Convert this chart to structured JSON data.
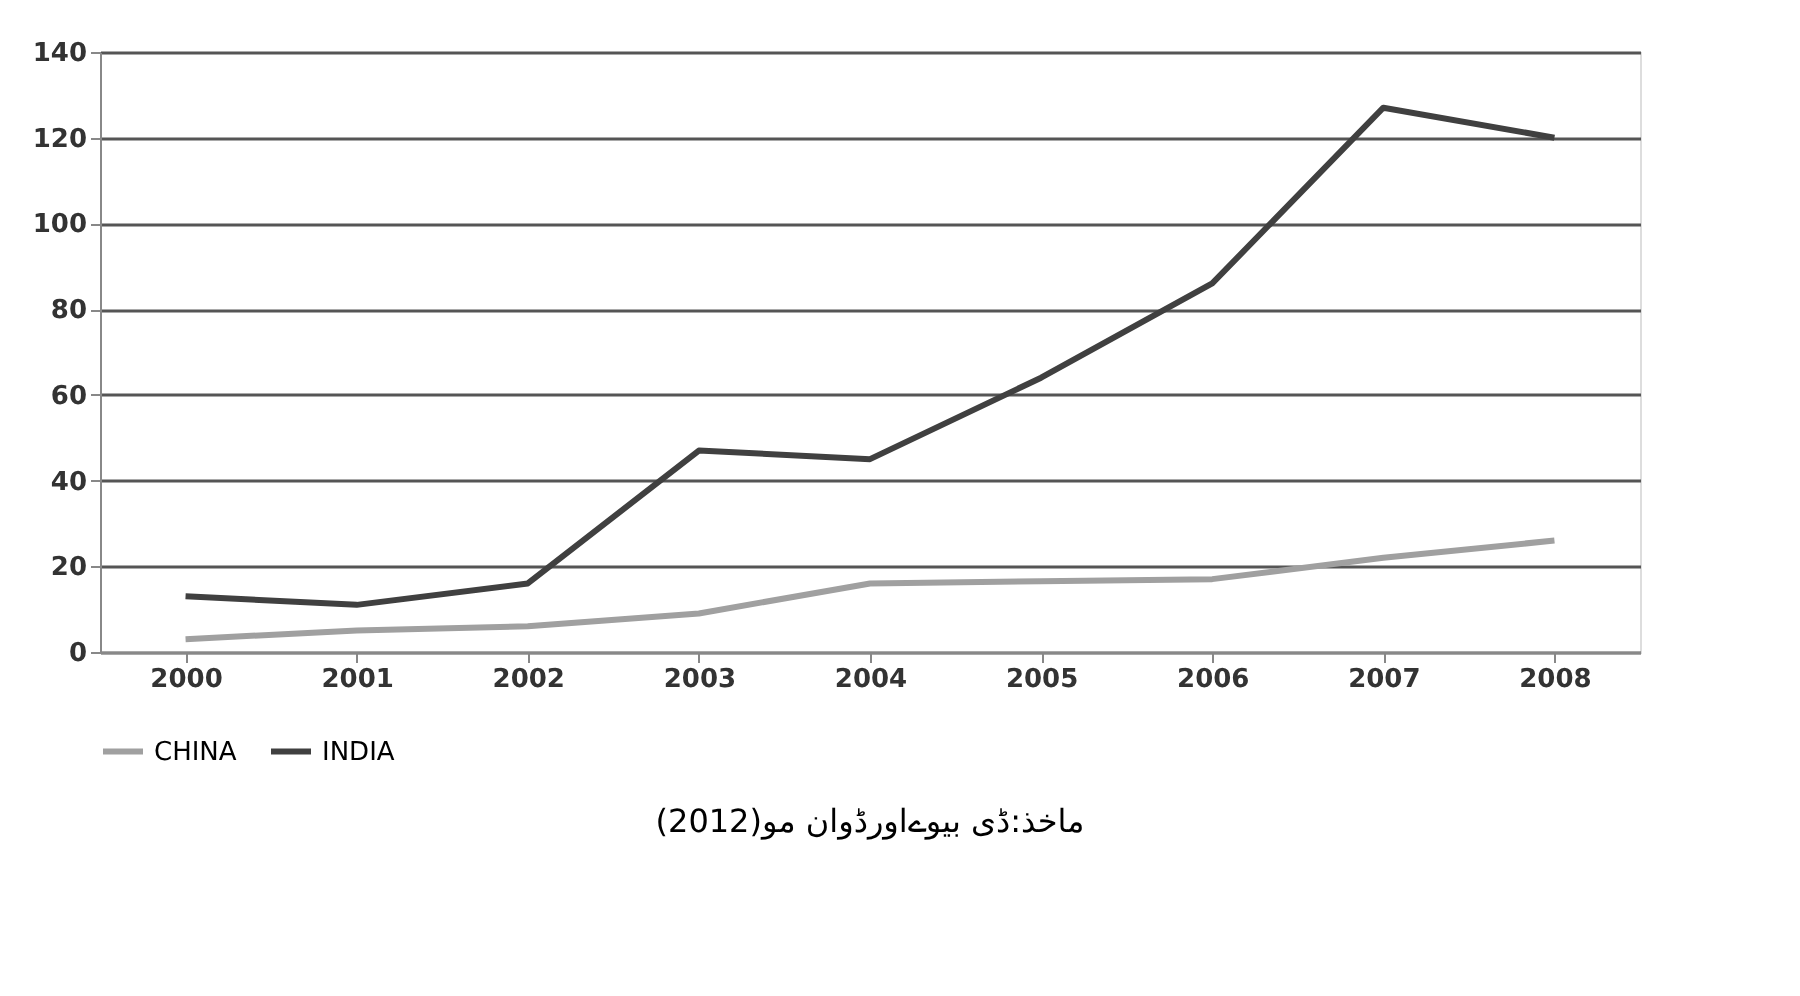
{
  "chart_data": {
    "type": "line",
    "categories": [
      "2000",
      "2001",
      "2002",
      "2003",
      "2004",
      "2005",
      "2006",
      "2007",
      "2008"
    ],
    "series": [
      {
        "name": "CHINA",
        "color": "#a0a0a0",
        "values": [
          3,
          5,
          6,
          9,
          16,
          16.5,
          17,
          22,
          26
        ]
      },
      {
        "name": "INDIA",
        "color": "#404040",
        "values": [
          13,
          11,
          16,
          47,
          45,
          64,
          86,
          127,
          120
        ]
      }
    ],
    "ylim": [
      0,
      140
    ],
    "yticks": [
      0,
      20,
      40,
      60,
      80,
      100,
      120,
      140
    ],
    "grid": "y",
    "legend": "bottom",
    "marker": "none",
    "line_style": "solid",
    "annotations": [
      "ماخذ:ڈی بیوےاورڈوان مو(2012)"
    ]
  }
}
